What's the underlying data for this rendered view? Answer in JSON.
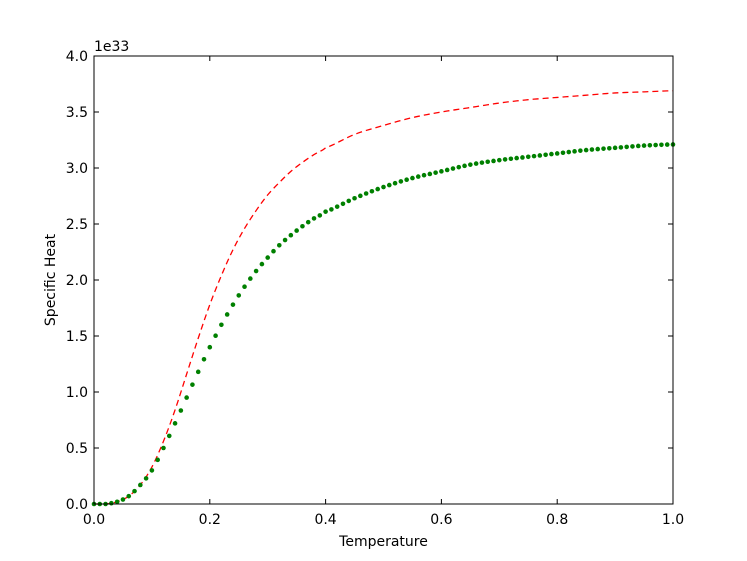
{
  "chart_data": {
    "type": "line",
    "title": "",
    "xlabel": "Temperature",
    "ylabel": "Specific Heat",
    "y_offset_label": "1e33",
    "xlim": [
      0.0,
      1.0
    ],
    "ylim": [
      0.0,
      4.0
    ],
    "y_scale_factor": 1e+33,
    "grid": false,
    "legend": "none",
    "x_ticks": [
      0.0,
      0.2,
      0.4,
      0.6,
      0.8,
      1.0
    ],
    "x_tick_labels": [
      "0.0",
      "0.2",
      "0.4",
      "0.6",
      "0.8",
      "1.0"
    ],
    "y_ticks": [
      0.0,
      0.5,
      1.0,
      1.5,
      2.0,
      2.5,
      3.0,
      3.5,
      4.0
    ],
    "y_tick_labels": [
      "0.0",
      "0.5",
      "1.0",
      "1.5",
      "2.0",
      "2.5",
      "3.0",
      "3.5",
      "4.0"
    ],
    "series": [
      {
        "style": "dashed",
        "color": "#ff0000",
        "x": [
          0.0,
          0.02,
          0.04,
          0.06,
          0.08,
          0.1,
          0.12,
          0.14,
          0.16,
          0.18,
          0.2,
          0.22,
          0.24,
          0.26,
          0.28,
          0.3,
          0.32,
          0.34,
          0.36,
          0.38,
          0.4,
          0.45,
          0.5,
          0.55,
          0.6,
          0.65,
          0.7,
          0.75,
          0.8,
          0.85,
          0.9,
          0.95,
          1.0
        ],
        "y": [
          0.0,
          0.0,
          0.02,
          0.07,
          0.17,
          0.33,
          0.56,
          0.84,
          1.16,
          1.48,
          1.78,
          2.04,
          2.27,
          2.46,
          2.62,
          2.76,
          2.87,
          2.97,
          3.05,
          3.12,
          3.18,
          3.3,
          3.38,
          3.45,
          3.5,
          3.54,
          3.58,
          3.61,
          3.63,
          3.65,
          3.67,
          3.68,
          3.69
        ]
      },
      {
        "style": "dotted",
        "color": "#008000",
        "x": [
          0.0,
          0.02,
          0.04,
          0.06,
          0.08,
          0.1,
          0.12,
          0.14,
          0.16,
          0.18,
          0.2,
          0.22,
          0.24,
          0.26,
          0.28,
          0.3,
          0.32,
          0.34,
          0.36,
          0.38,
          0.4,
          0.45,
          0.5,
          0.55,
          0.6,
          0.65,
          0.7,
          0.75,
          0.8,
          0.85,
          0.9,
          0.95,
          1.0
        ],
        "y": [
          0.0,
          0.0,
          0.02,
          0.07,
          0.17,
          0.3,
          0.5,
          0.72,
          0.95,
          1.18,
          1.4,
          1.6,
          1.78,
          1.94,
          2.08,
          2.2,
          2.31,
          2.4,
          2.48,
          2.55,
          2.61,
          2.73,
          2.83,
          2.91,
          2.97,
          3.03,
          3.07,
          3.1,
          3.13,
          3.16,
          3.18,
          3.2,
          3.21
        ]
      }
    ]
  }
}
